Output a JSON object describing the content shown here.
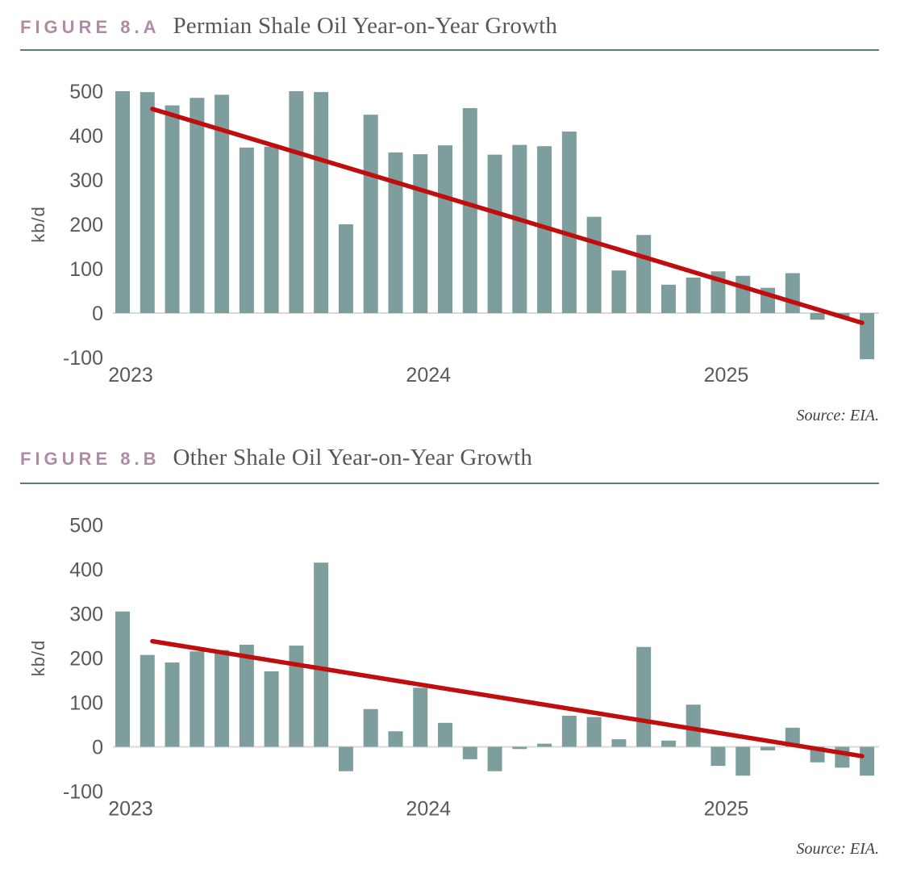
{
  "colors": {
    "accent_mauve": "#b08ba6",
    "title_gray": "#57585a",
    "rule_teal": "#54807e",
    "bar_teal": "#7d9e9d",
    "trend_red": "#c00d0d",
    "axis_text": "#595959",
    "zero_line_gray": "#d9d9d9"
  },
  "figures": [
    {
      "label": "FIGURE 8.A",
      "title": "Permian Shale Oil Year-on-Year Growth",
      "source": "Source: EIA.",
      "chart_data": {
        "type": "bar",
        "title": "Permian Shale Oil Year-on-Year Growth",
        "xlabel": "",
        "ylabel": "kb/d",
        "ylim": [
          -100,
          500
        ],
        "yticks": [
          500,
          400,
          300,
          200,
          100,
          0,
          -100
        ],
        "grid": "off",
        "legend": "none",
        "bar_color": "#7d9e9d",
        "year_labels": [
          "2023",
          "2024",
          "2025"
        ],
        "year_start_indices": [
          0,
          12,
          24
        ],
        "categories": [
          "Jan 2023",
          "Feb 2023",
          "Mar 2023",
          "Apr 2023",
          "May 2023",
          "Jun 2023",
          "Jul 2023",
          "Aug 2023",
          "Sep 2023",
          "Oct 2023",
          "Nov 2023",
          "Dec 2023",
          "Jan 2024",
          "Feb 2024",
          "Mar 2024",
          "Apr 2024",
          "May 2024",
          "Jun 2024",
          "Jul 2024",
          "Aug 2024",
          "Sep 2024",
          "Oct 2024",
          "Nov 2024",
          "Dec 2024",
          "Jan 2025",
          "Feb 2025",
          "Mar 2025",
          "Apr 2025",
          "May 2025",
          "Jun 2025",
          "Jul 2025"
        ],
        "values": [
          500,
          498,
          468,
          485,
          492,
          373,
          375,
          500,
          498,
          200,
          447,
          362,
          358,
          378,
          462,
          357,
          379,
          376,
          409,
          217,
          96,
          176,
          64,
          80,
          94,
          84,
          57,
          90,
          -15,
          -10,
          -104
        ],
        "trend_line": {
          "color": "#c00d0d",
          "from": {
            "index": 1.2,
            "value": 460
          },
          "to": {
            "index": 29.8,
            "value": -22
          }
        }
      }
    },
    {
      "label": "FIGURE 8.B",
      "title": "Other Shale Oil Year-on-Year Growth",
      "source": "Source: EIA.",
      "chart_data": {
        "type": "bar",
        "title": "Other Shale Oil Year-on-Year Growth",
        "xlabel": "",
        "ylabel": "kb/d",
        "ylim": [
          -100,
          500
        ],
        "yticks": [
          500,
          400,
          300,
          200,
          100,
          0,
          -100
        ],
        "grid": "off",
        "legend": "none",
        "bar_color": "#7d9e9d",
        "year_labels": [
          "2023",
          "2024",
          "2025"
        ],
        "year_start_indices": [
          0,
          12,
          24
        ],
        "categories": [
          "Jan 2023",
          "Feb 2023",
          "Mar 2023",
          "Apr 2023",
          "May 2023",
          "Jun 2023",
          "Jul 2023",
          "Aug 2023",
          "Sep 2023",
          "Oct 2023",
          "Nov 2023",
          "Dec 2023",
          "Jan 2024",
          "Feb 2024",
          "Mar 2024",
          "Apr 2024",
          "May 2024",
          "Jun 2024",
          "Jul 2024",
          "Aug 2024",
          "Sep 2024",
          "Oct 2024",
          "Nov 2024",
          "Dec 2024",
          "Jan 2025",
          "Feb 2025",
          "Mar 2025",
          "Apr 2025",
          "May 2025",
          "Jun 2025",
          "Jul 2025"
        ],
        "values": [
          305,
          207,
          190,
          215,
          218,
          230,
          170,
          228,
          415,
          -55,
          85,
          35,
          133,
          54,
          -28,
          -55,
          -5,
          7,
          70,
          67,
          17,
          225,
          14,
          95,
          -43,
          -65,
          -8,
          43,
          -35,
          -47,
          -65
        ],
        "trend_line": {
          "color": "#c00d0d",
          "from": {
            "index": 1.2,
            "value": 238
          },
          "to": {
            "index": 29.8,
            "value": -21
          }
        }
      }
    }
  ]
}
